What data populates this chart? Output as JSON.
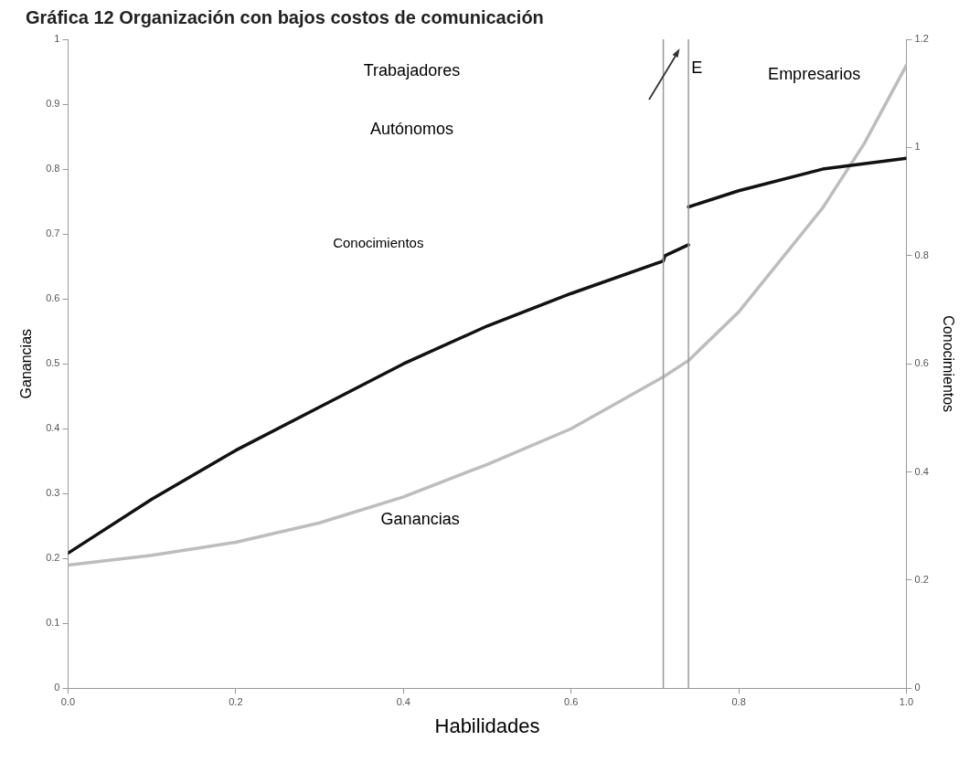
{
  "chart_data": {
    "type": "line",
    "title": "Gráfica 12 Organización con bajos costos de comunicación",
    "xlabel": "Habilidades",
    "ylabel": "Ganancias",
    "y2label": "Conocimientos",
    "xlim": [
      0,
      1
    ],
    "xticks": [
      {
        "value": 0,
        "label": "0.0"
      },
      0.2,
      0.4,
      0.6,
      0.8,
      {
        "value": 1,
        "label": "1.0"
      }
    ],
    "ylim": [
      0,
      1
    ],
    "yticks": [
      0,
      0.1,
      0.2,
      0.3,
      0.4,
      0.5,
      0.6,
      0.7,
      0.8,
      0.9,
      1
    ],
    "y2lim": [
      0,
      1.2
    ],
    "y2ticks": [
      0,
      0.2,
      0.4,
      0.6,
      0.8,
      1,
      1.2
    ],
    "grid": false,
    "legend": false,
    "marker": "none",
    "line_style": "solid",
    "series": [
      {
        "color": "#111111",
        "axis": "y2",
        "x": [
          0,
          0.1,
          0.2,
          0.3,
          0.4,
          0.5,
          0.6,
          0.71,
          0.712,
          0.74
        ],
        "values": [
          0.25,
          0.35,
          0.44,
          0.52,
          0.6,
          0.67,
          0.73,
          0.79,
          0.8,
          0.82
        ]
      },
      {
        "color": "#111111",
        "axis": "y2",
        "x": [
          0.74,
          0.8,
          0.9,
          1
        ],
        "values": [
          0.89,
          0.92,
          0.96,
          0.98
        ]
      },
      {
        "color": "#bdbdbd",
        "x": [
          0,
          0.1,
          0.2,
          0.3,
          0.4,
          0.5,
          0.6,
          0.71,
          0.74,
          0.8,
          0.9,
          0.95,
          1
        ],
        "values": [
          0.19,
          0.205,
          0.225,
          0.255,
          0.295,
          0.345,
          0.4,
          0.48,
          0.505,
          0.58,
          0.74,
          0.84,
          0.96
        ]
      }
    ],
    "ref_lines": [
      {
        "axis": "x",
        "value": 0.71,
        "color": "#999999"
      },
      {
        "axis": "x",
        "value": 0.74,
        "color": "#999999"
      }
    ],
    "annotations": [
      "Trabajadores",
      "Autónomos",
      "E",
      "Empresarios",
      "Conocimientos",
      "Ganancias"
    ]
  }
}
